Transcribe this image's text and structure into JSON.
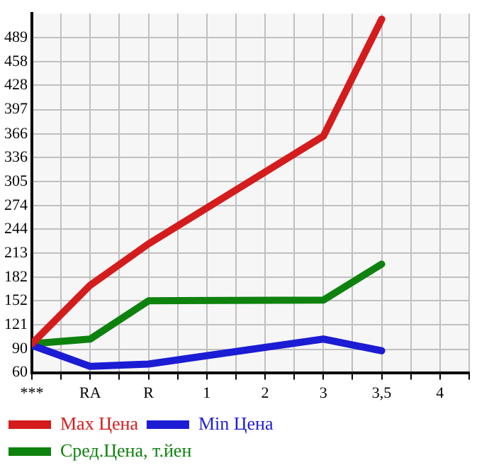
{
  "chart_data": {
    "type": "line",
    "categories": [
      "***",
      "RA",
      "R",
      "1",
      "2",
      "3",
      "3,5",
      "4"
    ],
    "series": [
      {
        "name": "Max Цена",
        "color": "#d41c1c",
        "values": [
          97,
          172,
          225,
          null,
          null,
          363,
          513,
          null
        ]
      },
      {
        "name": "Min Цена",
        "color": "#1c1cd4",
        "values": [
          95,
          68,
          71,
          null,
          null,
          103,
          88,
          null
        ]
      },
      {
        "name": "Сред.Цена, т.йен",
        "color": "#0e820e",
        "values": [
          97,
          103,
          152,
          null,
          null,
          153,
          199,
          null
        ]
      }
    ],
    "ylim": [
      60,
      520
    ],
    "yticks": [
      60,
      90,
      121,
      152,
      182,
      213,
      244,
      274,
      305,
      336,
      366,
      397,
      428,
      458,
      489
    ],
    "grid": true,
    "legend": "bottom",
    "marker": "none",
    "line_style": "solid"
  }
}
